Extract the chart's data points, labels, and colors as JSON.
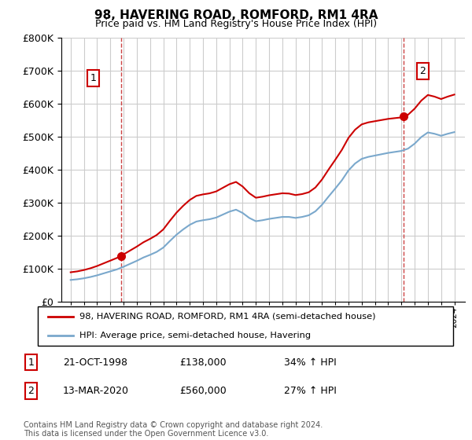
{
  "title": "98, HAVERING ROAD, ROMFORD, RM1 4RA",
  "subtitle": "Price paid vs. HM Land Registry's House Price Index (HPI)",
  "legend_line1": "98, HAVERING ROAD, ROMFORD, RM1 4RA (semi-detached house)",
  "legend_line2": "HPI: Average price, semi-detached house, Havering",
  "footnote": "Contains HM Land Registry data © Crown copyright and database right 2024.\nThis data is licensed under the Open Government Licence v3.0.",
  "transaction1_date": "21-OCT-1998",
  "transaction1_price": "£138,000",
  "transaction1_hpi": "34% ↑ HPI",
  "transaction2_date": "13-MAR-2020",
  "transaction2_price": "£560,000",
  "transaction2_hpi": "27% ↑ HPI",
  "ylim": [
    0,
    800000
  ],
  "yticks": [
    0,
    100000,
    200000,
    300000,
    400000,
    500000,
    600000,
    700000,
    800000
  ],
  "color_red": "#cc0000",
  "color_blue": "#7aa8cc",
  "color_vline": "#cc4444",
  "grid_color": "#cccccc",
  "t1_year": 1998.79,
  "t1_price": 138000,
  "t2_year": 2020.17,
  "t2_price": 560000
}
